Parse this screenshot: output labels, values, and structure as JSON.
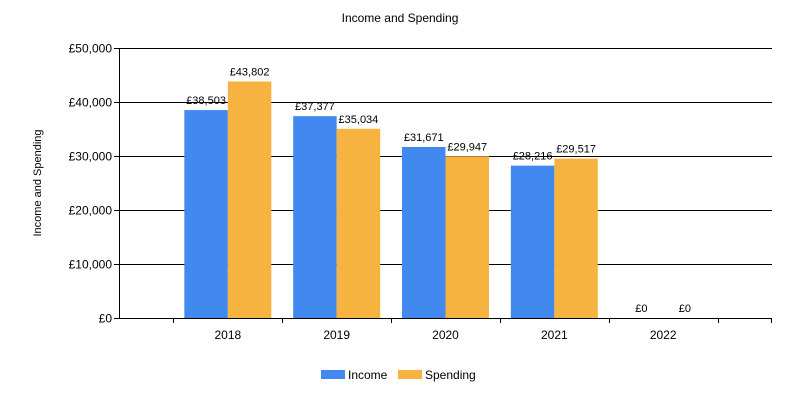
{
  "chart_data": {
    "type": "bar",
    "title": "Income and Spending",
    "xlabel": "",
    "ylabel": "Income and Spending",
    "categories": [
      "2018",
      "2019",
      "2020",
      "2021",
      "2022"
    ],
    "series": [
      {
        "name": "Income",
        "color": "#4189EE",
        "values": [
          38503,
          37377,
          31671,
          28216,
          0
        ],
        "labels": [
          "£38,503",
          "£37,377",
          "£31,671",
          "£28,216",
          "£0"
        ]
      },
      {
        "name": "Spending",
        "color": "#F7B33F",
        "values": [
          43802,
          35034,
          29947,
          29517,
          0
        ],
        "labels": [
          "£43,802",
          "£35,034",
          "£29,947",
          "£29,517",
          "£0"
        ]
      }
    ],
    "ylim": [
      0,
      50000
    ],
    "yticks": [
      0,
      10000,
      20000,
      30000,
      40000,
      50000
    ],
    "ytick_labels": [
      "£0",
      "£10,000",
      "£20,000",
      "£30,000",
      "£40,000",
      "£50,000"
    ],
    "grid": true,
    "legend": "bottom-center"
  }
}
